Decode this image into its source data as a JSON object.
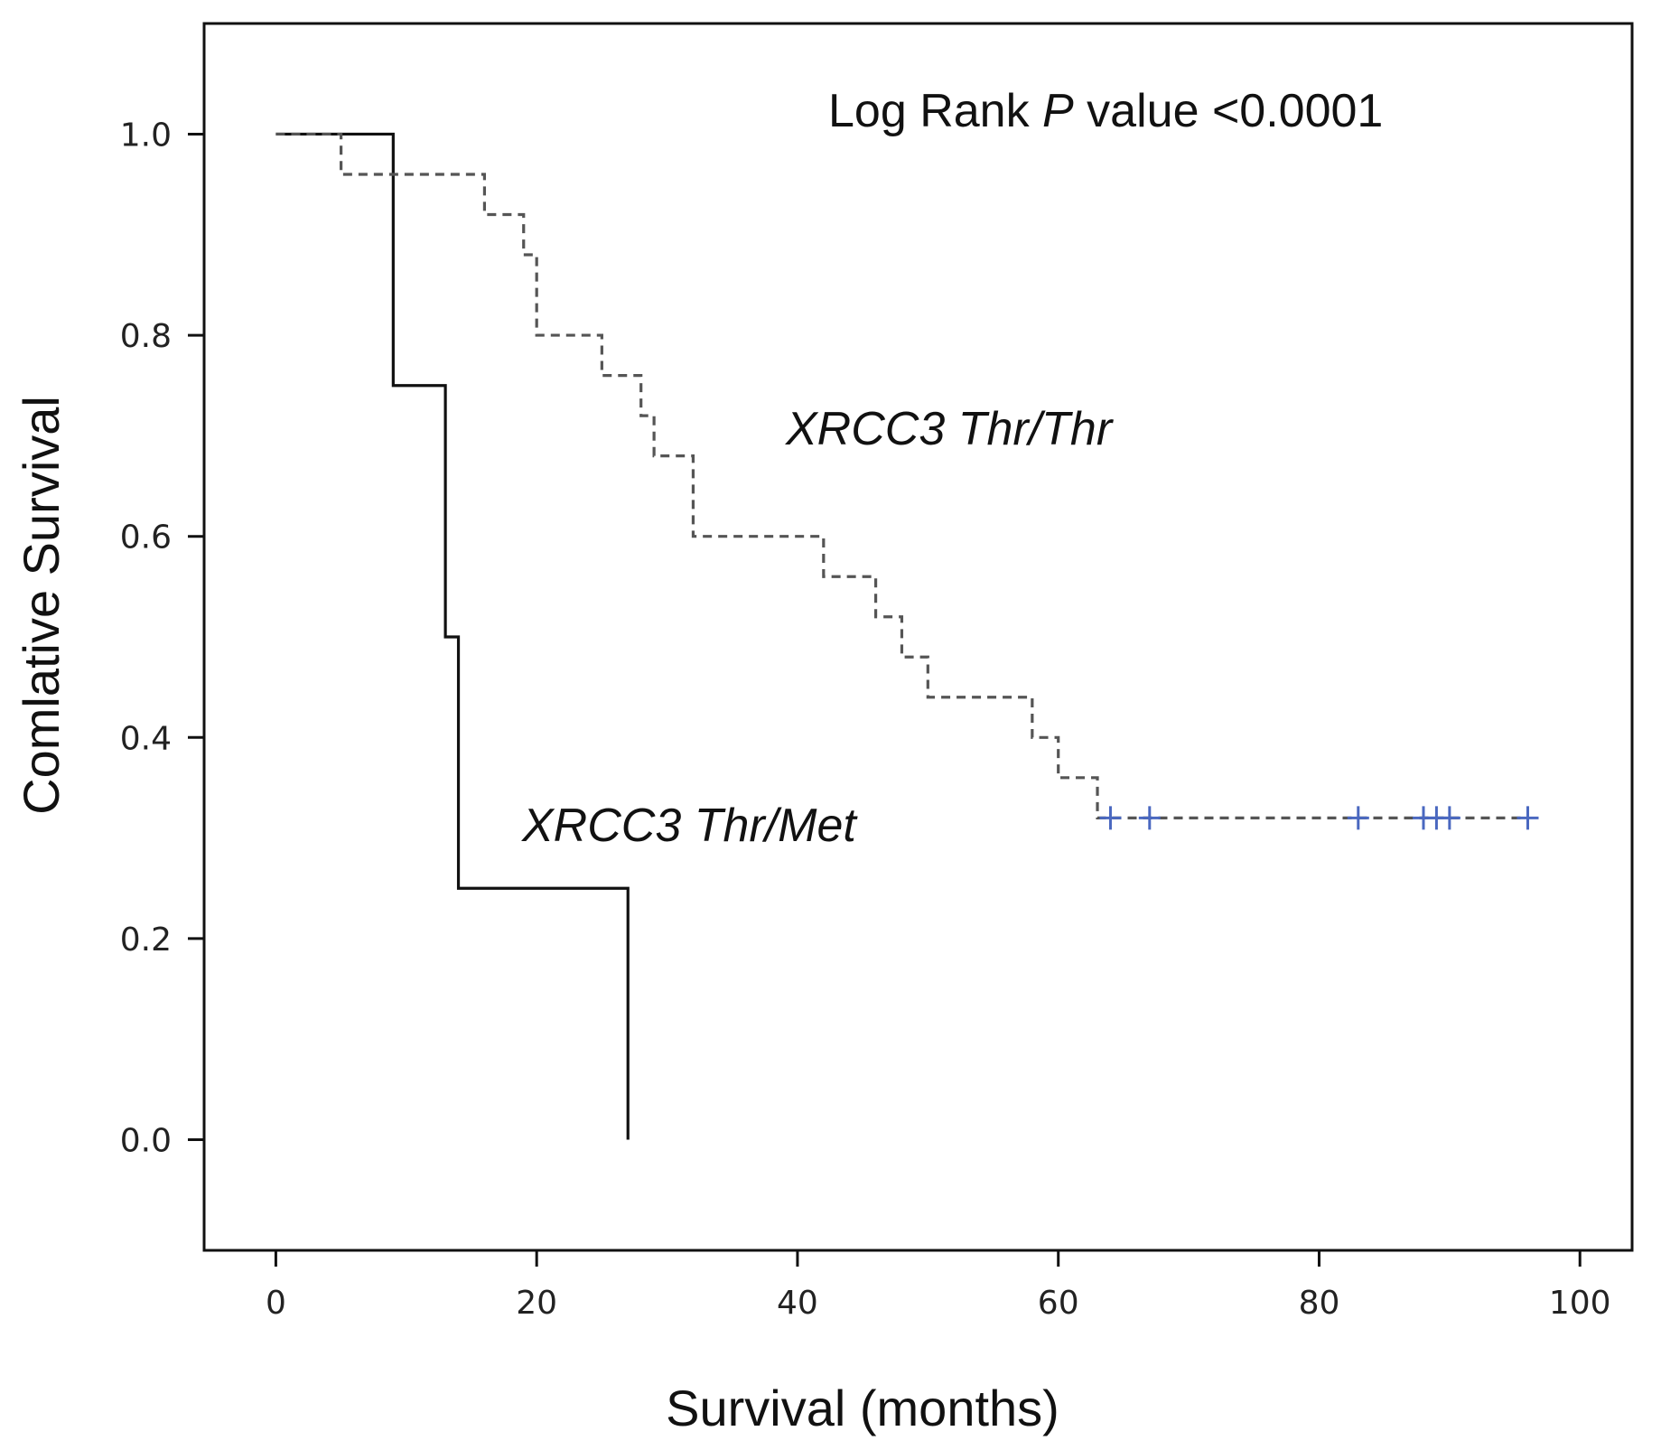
{
  "chart_data": {
    "type": "line",
    "subtype": "kaplan-meier",
    "title": "",
    "xlabel": "Survival (months)",
    "ylabel": "Comlative Survival",
    "xlim": [
      -5.5,
      104
    ],
    "ylim": [
      -0.11,
      1.11
    ],
    "xticks": [
      0,
      20,
      40,
      60,
      80,
      100
    ],
    "yticks": [
      0.0,
      0.2,
      0.4,
      0.6,
      0.8,
      1.0
    ],
    "xtick_labels": [
      "0",
      "20",
      "40",
      "60",
      "80",
      "100"
    ],
    "ytick_labels": [
      "0.0",
      "0.2",
      "0.4",
      "0.6",
      "0.8",
      "1.0"
    ],
    "grid": false,
    "annotations": {
      "pvalue_prefix": "Log Rank ",
      "pvalue_italic": "P",
      "pvalue_suffix": " value <0.0001",
      "label_thr_thr": "XRCC3 Thr/Thr",
      "label_thr_met": "XRCC3 Thr/Met"
    },
    "series": [
      {
        "name": "XRCC3 Thr/Met",
        "style": "solid",
        "color": "#111111",
        "steps": [
          [
            0,
            1.0
          ],
          [
            9,
            0.75
          ],
          [
            13,
            0.5
          ],
          [
            14,
            0.25
          ],
          [
            27,
            0.0
          ]
        ],
        "end_x": 27,
        "censored": []
      },
      {
        "name": "XRCC3 Thr/Thr",
        "style": "dashed",
        "color": "#555555",
        "steps": [
          [
            0,
            1.0
          ],
          [
            5,
            0.96
          ],
          [
            16,
            0.92
          ],
          [
            19,
            0.88
          ],
          [
            20,
            0.8
          ],
          [
            25,
            0.76
          ],
          [
            28,
            0.72
          ],
          [
            29,
            0.68
          ],
          [
            32,
            0.6
          ],
          [
            42,
            0.56
          ],
          [
            46,
            0.52
          ],
          [
            48,
            0.48
          ],
          [
            50,
            0.44
          ],
          [
            58,
            0.4
          ],
          [
            60,
            0.36
          ],
          [
            63,
            0.32
          ]
        ],
        "end_x": 96,
        "censored": [
          64,
          67,
          83,
          88,
          89,
          90,
          96
        ]
      }
    ],
    "censor_color": "#4a68c0"
  }
}
